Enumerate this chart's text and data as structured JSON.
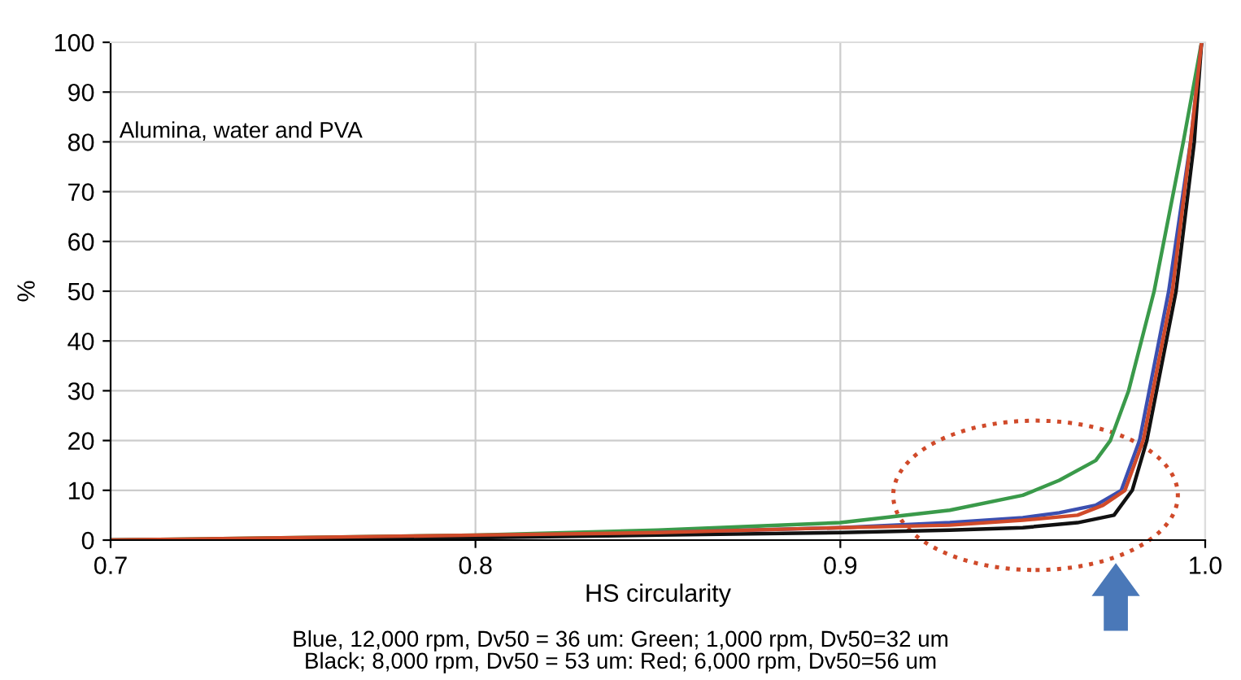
{
  "chart_data": {
    "type": "line",
    "xlabel": "HS circularity",
    "ylabel": "%",
    "xlim": [
      0.7,
      1.0
    ],
    "ylim": [
      0,
      100
    ],
    "xticks": [
      {
        "value": 0.7,
        "label": "0.7"
      },
      {
        "value": 0.8,
        "label": "0.8"
      },
      {
        "value": 0.9,
        "label": "0.9"
      },
      {
        "value": 1.0,
        "label": "1.0"
      }
    ],
    "yticks": [
      0,
      10,
      20,
      30,
      40,
      50,
      60,
      70,
      80,
      90,
      100
    ],
    "grid": true,
    "marker": "none",
    "line_style": "solid",
    "series": [
      {
        "color": "#3a9a4a",
        "x": [
          0.7,
          0.8,
          0.85,
          0.9,
          0.93,
          0.95,
          0.96,
          0.97,
          0.974,
          0.979,
          0.986,
          0.994,
          0.999
        ],
        "values": [
          0,
          1,
          2,
          3.5,
          6,
          9,
          12,
          16,
          20,
          30,
          50,
          80,
          100
        ]
      },
      {
        "color": "#3b4fb0",
        "x": [
          0.85,
          0.9,
          0.93,
          0.95,
          0.96,
          0.97,
          0.977,
          0.982,
          0.99,
          0.996,
          0.999
        ],
        "values": [
          1.5,
          2.5,
          3.5,
          4.5,
          5.5,
          7,
          10,
          20,
          50,
          80,
          100
        ]
      },
      {
        "color": "#111111",
        "x": [
          0.7,
          0.8,
          0.85,
          0.9,
          0.93,
          0.95,
          0.965,
          0.975,
          0.98,
          0.984,
          0.992,
          0.997,
          0.999
        ],
        "values": [
          0,
          0.5,
          1,
          1.5,
          2,
          2.5,
          3.5,
          5,
          10,
          20,
          50,
          80,
          100
        ]
      },
      {
        "color": "#d04a2a",
        "x": [
          0.7,
          0.8,
          0.85,
          0.9,
          0.93,
          0.95,
          0.965,
          0.972,
          0.978,
          0.983,
          0.991,
          0.996,
          0.999
        ],
        "values": [
          0,
          1,
          1.5,
          2.5,
          3,
          4,
          5,
          7,
          10,
          20,
          50,
          80,
          100
        ]
      }
    ],
    "annotations": [
      "Alumina, water and PVA",
      "Blue, 12,000 rpm, Dv50 = 36 um: Green; 1,000 rpm, Dv50=32 um\nBlack; 8,000 rpm, Dv50 = 53 um: Red; 6,000 rpm, Dv50=56 um"
    ]
  }
}
